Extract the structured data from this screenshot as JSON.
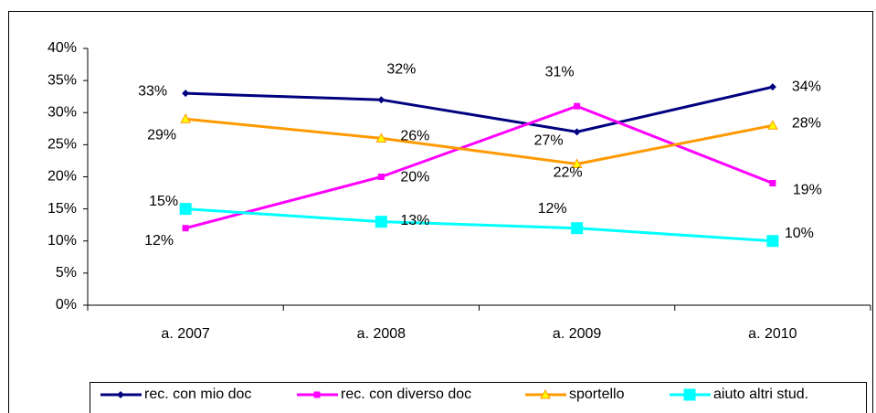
{
  "chart_data": {
    "type": "line",
    "categories": [
      "a. 2007",
      "a. 2008",
      "a. 2009",
      "a. 2010"
    ],
    "ylim": [
      0,
      40
    ],
    "yticks": [
      {
        "value": 0,
        "label": "0%"
      },
      {
        "value": 5,
        "label": "5%"
      },
      {
        "value": 10,
        "label": "10%"
      },
      {
        "value": 15,
        "label": "15%"
      },
      {
        "value": 20,
        "label": "20%"
      },
      {
        "value": 25,
        "label": "25%"
      },
      {
        "value": 30,
        "label": "30%"
      },
      {
        "value": 35,
        "label": "35%"
      },
      {
        "value": 40,
        "label": "40%"
      }
    ],
    "grid": false,
    "legend": "bottom",
    "series": [
      {
        "name": "rec. con mio doc",
        "color": "#000080",
        "marker": "diamond",
        "values": [
          33,
          32,
          27,
          34
        ],
        "value_labels": [
          "33%",
          "32%",
          "27%",
          "34%"
        ]
      },
      {
        "name": "rec. con diverso doc",
        "color": "#ff00ff",
        "marker": "square",
        "values": [
          12,
          20,
          31,
          19
        ],
        "value_labels": [
          "12%",
          "20%",
          "31%",
          "19%"
        ]
      },
      {
        "name": "sportello",
        "color": "#ff9900",
        "marker": "triangle",
        "values": [
          29,
          26,
          22,
          28
        ],
        "value_labels": [
          "29%",
          "26%",
          "22%",
          "28%"
        ]
      },
      {
        "name": "aiuto altri stud.",
        "color": "#00ffff",
        "marker": "big-square",
        "values": [
          15,
          13,
          12,
          10
        ],
        "value_labels": [
          "15%",
          "13%",
          "12%",
          "10%"
        ]
      }
    ]
  }
}
